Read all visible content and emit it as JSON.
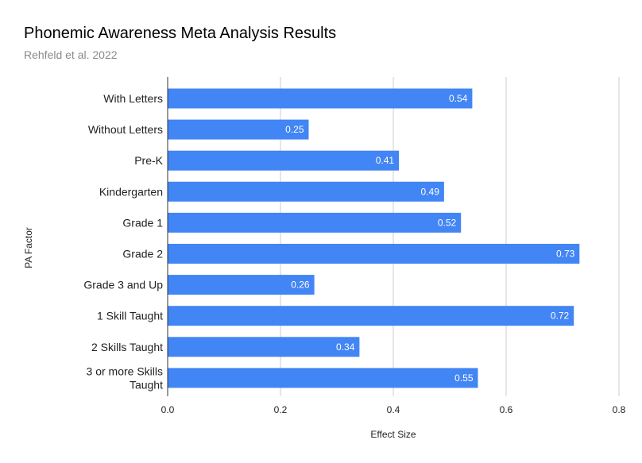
{
  "chart_data": {
    "type": "bar",
    "orientation": "horizontal",
    "title": "Phonemic Awareness Meta Analysis Results",
    "subtitle": "Rehfeld et al. 2022",
    "xlabel": "Effect Size",
    "ylabel": "PA Factor",
    "categories": [
      "With Letters",
      "Without Letters",
      "Pre-K",
      "Kindergarten",
      "Grade 1",
      "Grade 2",
      "Grade 3 and Up",
      "1 Skill Taught",
      "2 Skills Taught",
      "3 or more Skills Taught"
    ],
    "category_lines": [
      [
        "With Letters"
      ],
      [
        "Without Letters"
      ],
      [
        "Pre-K"
      ],
      [
        "Kindergarten"
      ],
      [
        "Grade 1"
      ],
      [
        "Grade 2"
      ],
      [
        "Grade 3 and Up"
      ],
      [
        "1 Skill Taught"
      ],
      [
        "2 Skills Taught"
      ],
      [
        "3 or more Skills",
        "Taught"
      ]
    ],
    "values": [
      0.54,
      0.25,
      0.41,
      0.49,
      0.52,
      0.73,
      0.26,
      0.72,
      0.34,
      0.55
    ],
    "data_labels": [
      "0.54",
      "0.25",
      "0.41",
      "0.49",
      "0.52",
      "0.73",
      "0.26",
      "0.72",
      "0.34",
      "0.55"
    ],
    "xlim": [
      0,
      0.8
    ],
    "xticks": [
      0,
      0.2,
      0.4,
      0.6,
      0.8
    ],
    "xtick_labels": [
      "0.0",
      "0.2",
      "0.4",
      "0.6",
      "0.8"
    ],
    "grid": true,
    "legend": "none",
    "bar_color": "#4285f4",
    "gridline_color": "#cccccc",
    "axis_color": "#333333"
  }
}
